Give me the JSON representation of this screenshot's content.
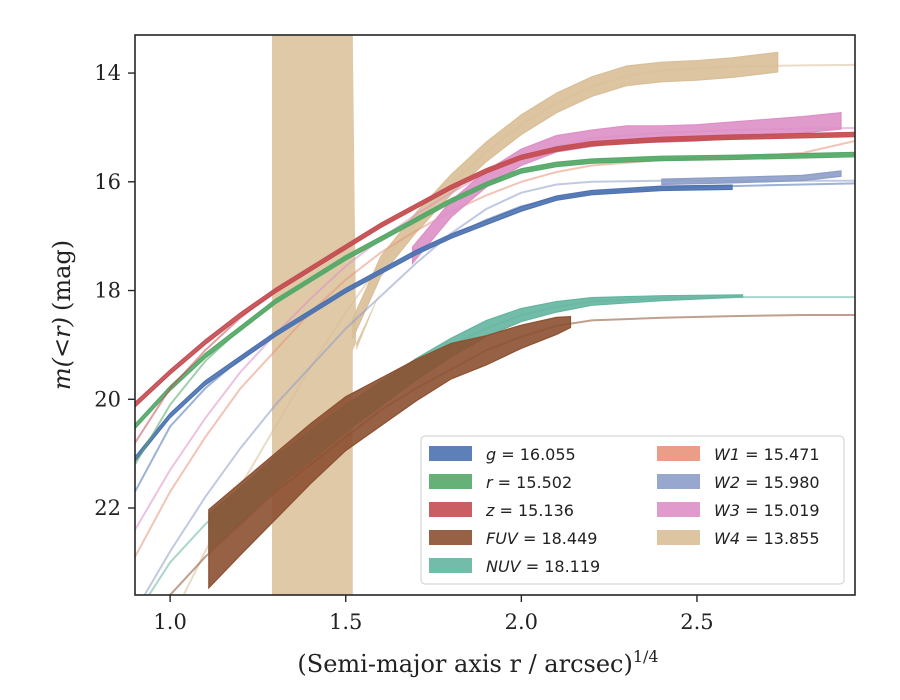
{
  "chart_data": {
    "type": "line",
    "xlabel": "(Semi-major axis r / arcsec)",
    "xlabel_exponent": "1/4",
    "ylabel_math": "m(<r)",
    "ylabel_unit": "(mag)",
    "xlim": [
      0.9,
      2.95
    ],
    "ylim": [
      23.6,
      13.3
    ],
    "y_inverted": true,
    "xticks": [
      1.0,
      1.5,
      2.0,
      2.5
    ],
    "xtick_labels": [
      "1.0",
      "1.5",
      "2.0",
      "2.5"
    ],
    "yticks": [
      14,
      16,
      18,
      20,
      22
    ],
    "ytick_labels": [
      "14",
      "16",
      "18",
      "20",
      "22"
    ],
    "grid": false,
    "legend_location": "lower-right",
    "legend_columns": 2,
    "series": [
      {
        "name": "g",
        "label": "g = 16.055",
        "color": "#4c72b0",
        "model": [
          [
            0.9,
            21.7
          ],
          [
            1.0,
            20.5
          ],
          [
            1.1,
            19.8
          ],
          [
            1.2,
            19.25
          ],
          [
            1.3,
            18.8
          ],
          [
            1.4,
            18.4
          ],
          [
            1.5,
            18.0
          ],
          [
            1.6,
            17.65
          ],
          [
            1.7,
            17.3
          ],
          [
            1.8,
            17.0
          ],
          [
            1.9,
            16.7
          ],
          [
            2.0,
            16.45
          ],
          [
            2.1,
            16.3
          ],
          [
            2.2,
            16.2
          ],
          [
            2.4,
            16.12
          ],
          [
            2.6,
            16.08
          ],
          [
            2.8,
            16.05
          ],
          [
            2.95,
            16.03
          ]
        ],
        "profile": [
          [
            0.9,
            21.1
          ],
          [
            1.0,
            20.3
          ],
          [
            1.1,
            19.7
          ],
          [
            1.2,
            19.25
          ],
          [
            1.3,
            18.8
          ],
          [
            1.4,
            18.4
          ],
          [
            1.5,
            18.0
          ],
          [
            1.6,
            17.65
          ],
          [
            1.7,
            17.3
          ],
          [
            1.8,
            17.0
          ],
          [
            1.9,
            16.75
          ],
          [
            2.0,
            16.5
          ],
          [
            2.1,
            16.3
          ],
          [
            2.2,
            16.2
          ],
          [
            2.4,
            16.12
          ],
          [
            2.6,
            16.1
          ]
        ],
        "profile_end": 2.62,
        "band_halfwidth": 0.04
      },
      {
        "name": "r",
        "label": "r = 15.502",
        "color": "#55a868",
        "model": [
          [
            0.9,
            21.2
          ],
          [
            1.0,
            20.1
          ],
          [
            1.1,
            19.3
          ],
          [
            1.2,
            18.7
          ],
          [
            1.3,
            18.2
          ],
          [
            1.4,
            17.8
          ],
          [
            1.5,
            17.4
          ],
          [
            1.6,
            17.05
          ],
          [
            1.7,
            16.7
          ],
          [
            1.8,
            16.35
          ],
          [
            1.9,
            16.05
          ],
          [
            2.0,
            15.8
          ],
          [
            2.1,
            15.68
          ],
          [
            2.2,
            15.62
          ],
          [
            2.4,
            15.57
          ],
          [
            2.6,
            15.55
          ],
          [
            2.8,
            15.52
          ],
          [
            2.95,
            15.5
          ]
        ],
        "profile": [
          [
            0.9,
            20.5
          ],
          [
            1.0,
            19.8
          ],
          [
            1.1,
            19.2
          ],
          [
            1.2,
            18.7
          ],
          [
            1.3,
            18.2
          ],
          [
            1.4,
            17.8
          ],
          [
            1.5,
            17.4
          ],
          [
            1.6,
            17.05
          ],
          [
            1.7,
            16.7
          ],
          [
            1.8,
            16.35
          ],
          [
            1.9,
            16.05
          ],
          [
            2.0,
            15.8
          ],
          [
            2.1,
            15.68
          ],
          [
            2.2,
            15.62
          ],
          [
            2.4,
            15.57
          ],
          [
            2.6,
            15.55
          ],
          [
            2.95,
            15.5
          ]
        ],
        "profile_end": 2.95,
        "band_halfwidth": 0.04
      },
      {
        "name": "z",
        "label": "z = 15.136",
        "color": "#c44e52",
        "model": [
          [
            0.9,
            20.8
          ],
          [
            1.0,
            19.8
          ],
          [
            1.1,
            19.1
          ],
          [
            1.2,
            18.5
          ],
          [
            1.3,
            18.0
          ],
          [
            1.4,
            17.6
          ],
          [
            1.5,
            17.2
          ],
          [
            1.6,
            16.8
          ],
          [
            1.7,
            16.45
          ],
          [
            1.8,
            16.1
          ],
          [
            1.9,
            15.8
          ],
          [
            2.0,
            15.55
          ],
          [
            2.1,
            15.4
          ],
          [
            2.2,
            15.3
          ],
          [
            2.4,
            15.22
          ],
          [
            2.6,
            15.18
          ],
          [
            2.8,
            15.15
          ],
          [
            2.95,
            15.13
          ]
        ],
        "profile": [
          [
            0.9,
            20.1
          ],
          [
            1.0,
            19.5
          ],
          [
            1.1,
            18.95
          ],
          [
            1.2,
            18.45
          ],
          [
            1.3,
            18.0
          ],
          [
            1.4,
            17.6
          ],
          [
            1.5,
            17.2
          ],
          [
            1.6,
            16.8
          ],
          [
            1.7,
            16.45
          ],
          [
            1.8,
            16.1
          ],
          [
            1.9,
            15.8
          ],
          [
            2.0,
            15.55
          ],
          [
            2.1,
            15.4
          ],
          [
            2.2,
            15.3
          ],
          [
            2.4,
            15.22
          ],
          [
            2.6,
            15.18
          ],
          [
            2.95,
            15.13
          ]
        ],
        "profile_end": 2.95,
        "band_halfwidth": 0.04
      },
      {
        "name": "FUV",
        "label": "FUV = 18.449",
        "color": "#8c5031",
        "model": [
          [
            0.9,
            24.6
          ],
          [
            1.0,
            23.6
          ],
          [
            1.1,
            22.9
          ],
          [
            1.2,
            22.3
          ],
          [
            1.3,
            21.7
          ],
          [
            1.4,
            21.2
          ],
          [
            1.5,
            20.7
          ],
          [
            1.6,
            20.2
          ],
          [
            1.7,
            19.8
          ],
          [
            1.8,
            19.45
          ],
          [
            1.9,
            19.1
          ],
          [
            2.0,
            18.85
          ],
          [
            2.1,
            18.65
          ],
          [
            2.2,
            18.55
          ],
          [
            2.4,
            18.5
          ],
          [
            2.6,
            18.47
          ],
          [
            2.8,
            18.45
          ],
          [
            2.95,
            18.45
          ]
        ],
        "profile": [
          [
            1.11,
            22.75
          ],
          [
            1.2,
            22.2
          ],
          [
            1.3,
            21.6
          ],
          [
            1.4,
            21.0
          ],
          [
            1.5,
            20.45
          ],
          [
            1.6,
            20.05
          ],
          [
            1.7,
            19.65
          ],
          [
            1.8,
            19.3
          ],
          [
            1.9,
            19.1
          ],
          [
            2.0,
            18.85
          ],
          [
            2.1,
            18.65
          ],
          [
            2.14,
            18.58
          ]
        ],
        "profile_start": 1.11,
        "profile_end": 2.14,
        "band_halfwidth_start": 0.72,
        "band_halfwidth_end": 0.1
      },
      {
        "name": "NUV",
        "label": "NUV = 18.119",
        "color": "#64b5a0",
        "model": [
          [
            0.9,
            24.0
          ],
          [
            1.0,
            23.0
          ],
          [
            1.1,
            22.3
          ],
          [
            1.2,
            21.7
          ],
          [
            1.3,
            21.2
          ],
          [
            1.4,
            20.7
          ],
          [
            1.5,
            20.3
          ],
          [
            1.6,
            19.85
          ],
          [
            1.7,
            19.4
          ],
          [
            1.8,
            19.0
          ],
          [
            1.9,
            18.7
          ],
          [
            2.0,
            18.45
          ],
          [
            2.1,
            18.3
          ],
          [
            2.2,
            18.2
          ],
          [
            2.4,
            18.14
          ],
          [
            2.6,
            18.12
          ],
          [
            2.8,
            18.12
          ],
          [
            2.95,
            18.12
          ]
        ],
        "profile": [
          [
            1.11,
            22.45
          ],
          [
            1.2,
            21.95
          ],
          [
            1.3,
            21.35
          ],
          [
            1.4,
            20.85
          ],
          [
            1.5,
            20.35
          ],
          [
            1.6,
            19.9
          ],
          [
            1.7,
            19.45
          ],
          [
            1.8,
            19.05
          ],
          [
            1.9,
            18.7
          ],
          [
            2.0,
            18.45
          ],
          [
            2.1,
            18.3
          ],
          [
            2.2,
            18.2
          ],
          [
            2.4,
            18.14
          ],
          [
            2.63,
            18.1
          ]
        ],
        "profile_start": 1.11,
        "profile_end": 2.63,
        "band_halfwidth_start": 0.35,
        "band_halfwidth_end": 0.02
      },
      {
        "name": "W1",
        "label": "W1 = 15.471",
        "color": "#e8947a",
        "model": [
          [
            0.9,
            22.9
          ],
          [
            1.0,
            21.7
          ],
          [
            1.1,
            20.7
          ],
          [
            1.2,
            19.8
          ],
          [
            1.3,
            19.1
          ],
          [
            1.4,
            18.4
          ],
          [
            1.5,
            17.8
          ],
          [
            1.6,
            17.3
          ],
          [
            1.7,
            16.9
          ],
          [
            1.8,
            16.55
          ],
          [
            1.9,
            16.25
          ],
          [
            2.0,
            16.0
          ],
          [
            2.1,
            15.82
          ],
          [
            2.2,
            15.7
          ],
          [
            2.4,
            15.6
          ],
          [
            2.6,
            15.55
          ],
          [
            2.8,
            15.47
          ],
          [
            2.95,
            15.25
          ]
        ],
        "profile": [],
        "band_halfwidth": 0.04
      },
      {
        "name": "W2",
        "label": "W2 = 15.980",
        "color": "#8c9dc8",
        "model": [
          [
            0.9,
            23.9
          ],
          [
            1.0,
            22.8
          ],
          [
            1.1,
            21.8
          ],
          [
            1.2,
            20.9
          ],
          [
            1.3,
            20.1
          ],
          [
            1.4,
            19.4
          ],
          [
            1.5,
            18.7
          ],
          [
            1.6,
            18.1
          ],
          [
            1.7,
            17.5
          ],
          [
            1.8,
            16.95
          ],
          [
            1.9,
            16.5
          ],
          [
            2.0,
            16.2
          ],
          [
            2.1,
            16.05
          ],
          [
            2.2,
            16.0
          ],
          [
            2.4,
            15.98
          ],
          [
            2.6,
            15.98
          ],
          [
            2.8,
            15.98
          ],
          [
            2.95,
            15.98
          ]
        ],
        "profile": [
          [
            2.4,
            16.0
          ],
          [
            2.6,
            15.97
          ],
          [
            2.8,
            15.93
          ],
          [
            2.91,
            15.85
          ]
        ],
        "profile_start": 2.4,
        "profile_end": 2.91,
        "band_halfwidth": 0.05
      },
      {
        "name": "W3",
        "label": "W3 = 15.019",
        "color": "#dd8fc6",
        "model": [
          [
            0.9,
            22.4
          ],
          [
            1.0,
            21.3
          ],
          [
            1.1,
            20.35
          ],
          [
            1.2,
            19.5
          ],
          [
            1.3,
            18.8
          ],
          [
            1.4,
            18.15
          ],
          [
            1.5,
            17.55
          ],
          [
            1.6,
            17.05
          ],
          [
            1.7,
            16.6
          ],
          [
            1.8,
            16.2
          ],
          [
            1.9,
            15.85
          ],
          [
            2.0,
            15.55
          ],
          [
            2.1,
            15.35
          ],
          [
            2.2,
            15.2
          ],
          [
            2.4,
            15.1
          ],
          [
            2.6,
            15.05
          ],
          [
            2.8,
            15.02
          ],
          [
            2.95,
            15.01
          ]
        ],
        "profile": [
          [
            1.69,
            17.35
          ],
          [
            1.8,
            16.5
          ],
          [
            1.9,
            15.95
          ],
          [
            2.0,
            15.55
          ],
          [
            2.1,
            15.3
          ],
          [
            2.2,
            15.2
          ],
          [
            2.3,
            15.12
          ],
          [
            2.4,
            15.12
          ],
          [
            2.5,
            15.1
          ],
          [
            2.6,
            15.05
          ],
          [
            2.7,
            15.0
          ],
          [
            2.8,
            14.95
          ],
          [
            2.91,
            14.88
          ]
        ],
        "profile_start": 1.69,
        "profile_end": 2.91,
        "band_halfwidth": 0.15
      },
      {
        "name": "W4",
        "label": "W4 = 13.855",
        "color": "#d9bf98",
        "model": [
          [
            0.9,
            25.6
          ],
          [
            1.0,
            24.1
          ],
          [
            1.1,
            22.8
          ],
          [
            1.2,
            21.6
          ],
          [
            1.3,
            20.5
          ],
          [
            1.4,
            19.4
          ],
          [
            1.5,
            18.4
          ],
          [
            1.6,
            17.5
          ],
          [
            1.7,
            16.75
          ],
          [
            1.8,
            16.05
          ],
          [
            1.9,
            15.45
          ],
          [
            2.0,
            14.95
          ],
          [
            2.1,
            14.55
          ],
          [
            2.2,
            14.25
          ],
          [
            2.3,
            14.05
          ],
          [
            2.4,
            13.95
          ],
          [
            2.6,
            13.88
          ],
          [
            2.8,
            13.86
          ],
          [
            2.95,
            13.85
          ]
        ],
        "profile": [
          [
            1.52,
            18.7
          ],
          [
            1.6,
            17.55
          ],
          [
            1.7,
            16.75
          ],
          [
            1.8,
            16.05
          ],
          [
            1.9,
            15.45
          ],
          [
            2.0,
            14.95
          ],
          [
            2.1,
            14.55
          ],
          [
            2.2,
            14.25
          ],
          [
            2.3,
            14.05
          ],
          [
            2.4,
            13.98
          ],
          [
            2.5,
            13.95
          ],
          [
            2.6,
            13.9
          ],
          [
            2.73,
            13.8
          ]
        ],
        "profile_start": 1.29,
        "profile_end": 2.73,
        "band_halfwidth": 0.18,
        "wide_band_x": [
          1.29,
          1.52
        ]
      }
    ]
  }
}
